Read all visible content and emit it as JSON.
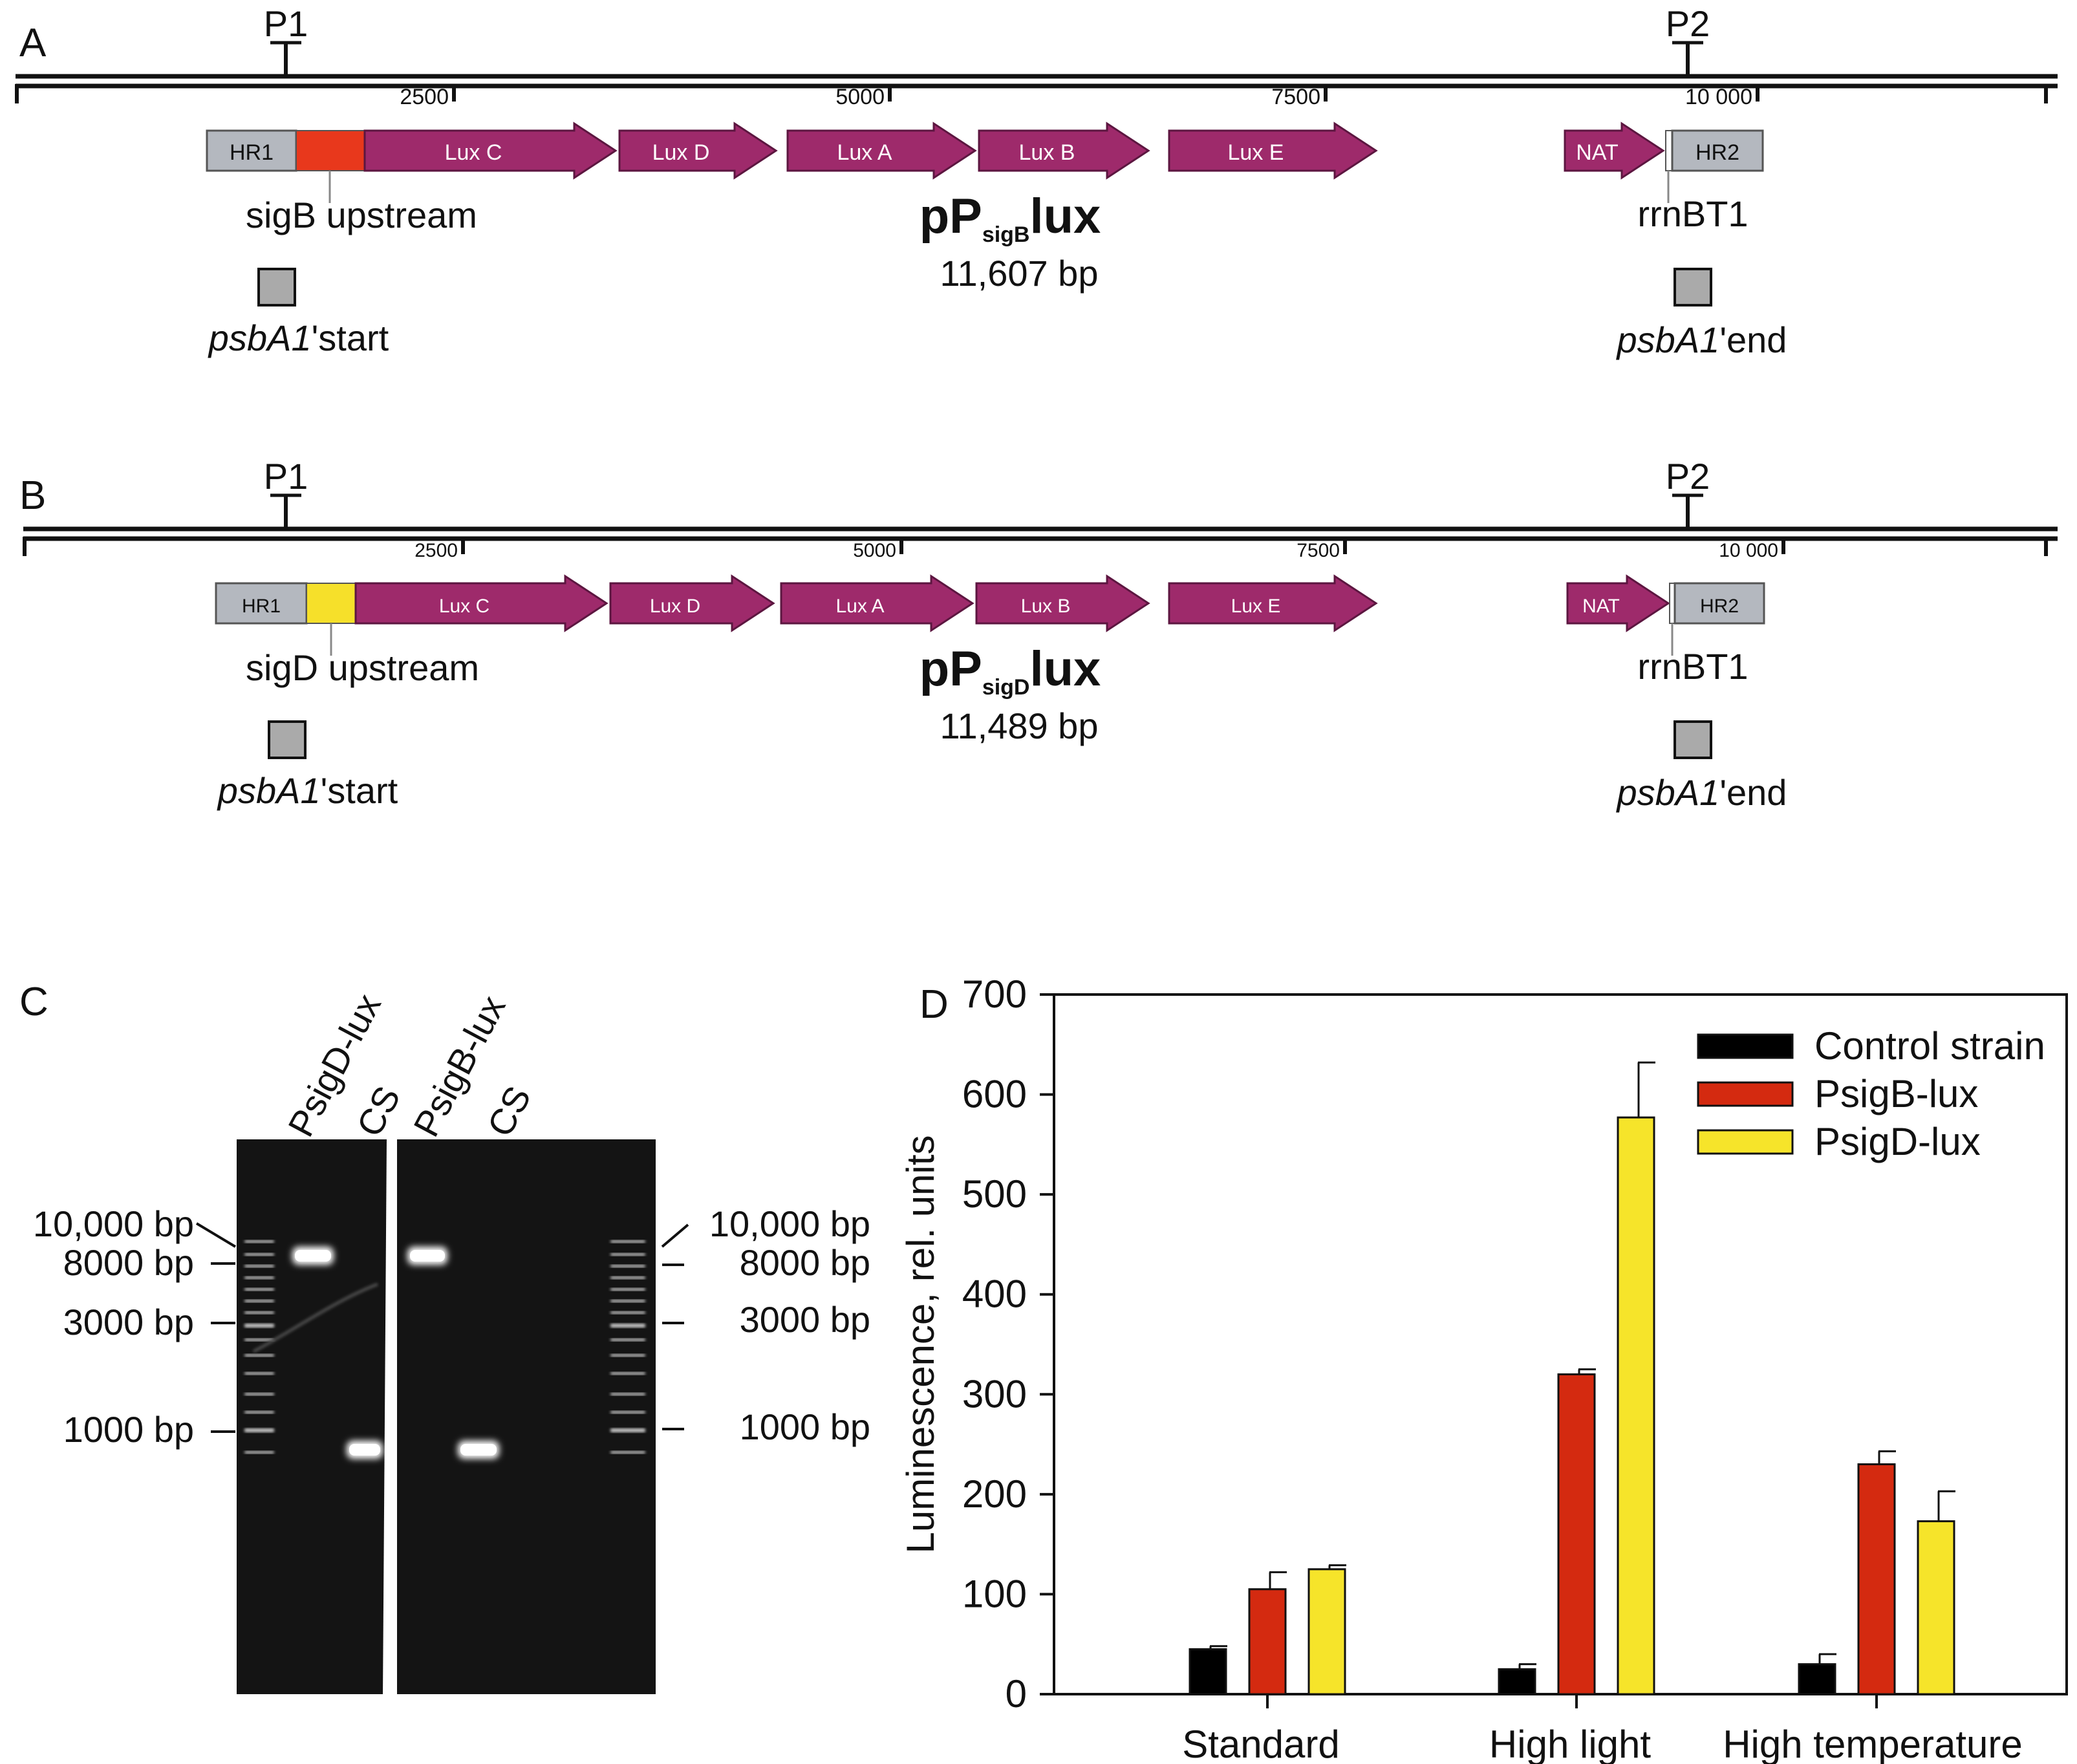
{
  "panels": {
    "A": {
      "letter": "A",
      "primers": [
        "P1",
        "P2"
      ],
      "ticks": [
        "2500",
        "5000",
        "7500",
        "10 000"
      ],
      "genes": [
        "HR1",
        "Lux C",
        "Lux D",
        "Lux A",
        "Lux B",
        "Lux E",
        "NAT",
        "HR2"
      ],
      "promoter_color": "#e8381c",
      "upstream_label": "sigB upstream",
      "terminator_label": "rrnBT1",
      "plasmid_name": "pP",
      "plasmid_subscript": "sigB",
      "plasmid_suffix": "lux",
      "plasmid_size": "11,607 bp",
      "start_label_italic": "psbA1",
      "start_label_rest": "'start",
      "end_label_italic": "psbA1",
      "end_label_rest": "'end"
    },
    "B": {
      "letter": "B",
      "primers": [
        "P1",
        "P2"
      ],
      "ticks": [
        "2500",
        "5000",
        "7500",
        "10 000"
      ],
      "genes": [
        "HR1",
        "Lux C",
        "Lux D",
        "Lux A",
        "Lux B",
        "Lux E",
        "NAT",
        "HR2"
      ],
      "promoter_color": "#f6e02a",
      "upstream_label": "sigD upstream",
      "terminator_label": "rrnBT1",
      "plasmid_name": "pP",
      "plasmid_subscript": "sigD",
      "plasmid_suffix": "lux",
      "plasmid_size": "11,489 bp",
      "start_label_italic": "psbA1",
      "start_label_rest": "'start",
      "end_label_italic": "psbA1",
      "end_label_rest": "'end"
    }
  },
  "gel": {
    "letter": "C",
    "lane_labels": [
      "PsigD-lux",
      "CS",
      "PsigB-lux",
      "CS"
    ],
    "left_markers": [
      "10,000 bp",
      "8000 bp",
      "3000 bp",
      "1000 bp"
    ],
    "right_markers": [
      "10,000 bp",
      "8000 bp",
      "3000 bp",
      "1000 bp"
    ]
  },
  "colors": {
    "gene": "#9e2a6b",
    "gene_stroke": "#5c1640",
    "hr_box": "#b4b8bf",
    "control": "#000000",
    "psigb": "#d42a10",
    "psigd": "#f6e42a"
  },
  "chart_data": {
    "type": "bar",
    "panel_letter": "D",
    "title": "",
    "xlabel": "",
    "ylabel": "Luminescence, rel. units",
    "ylim": [
      0,
      700
    ],
    "yticks": [
      "0",
      "100",
      "200",
      "300",
      "400",
      "500",
      "600",
      "700"
    ],
    "categories": [
      "Standard",
      "High light",
      "High temperature"
    ],
    "series": [
      {
        "name": "Control strain",
        "values": [
          45,
          25,
          30
        ],
        "errors": [
          3,
          5,
          10
        ]
      },
      {
        "name": "PsigB-lux",
        "values": [
          105,
          320,
          230
        ],
        "errors": [
          17,
          5,
          13
        ]
      },
      {
        "name": "PsigD-lux",
        "values": [
          125,
          577,
          173
        ],
        "errors": [
          4,
          55,
          30
        ]
      }
    ],
    "legend_position": "top-right"
  }
}
